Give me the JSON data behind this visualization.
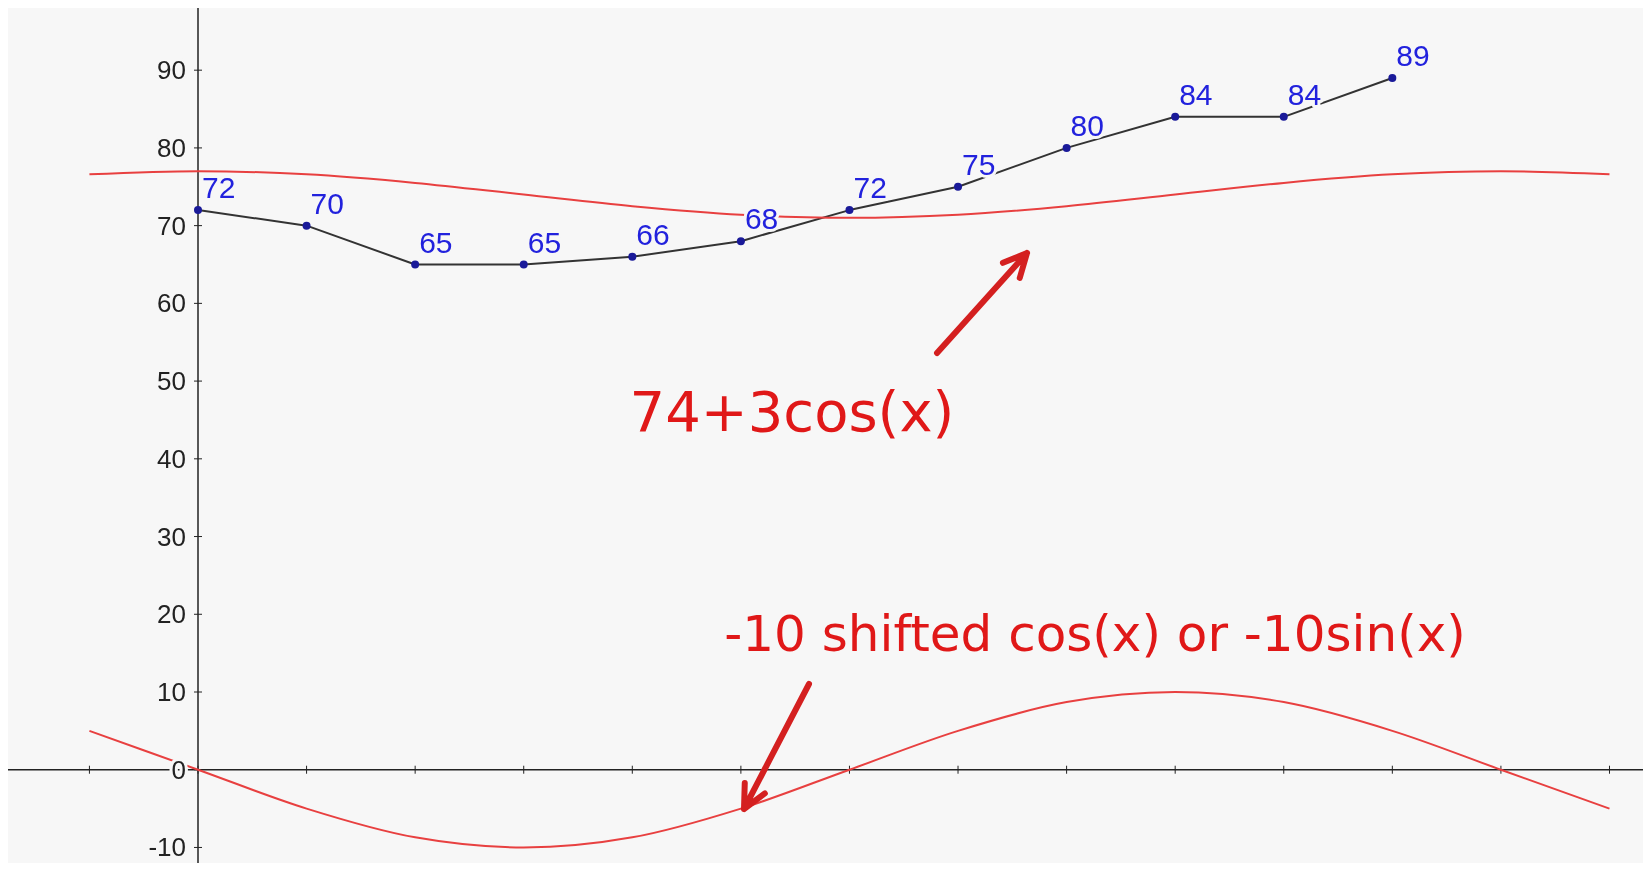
{
  "chart_data": {
    "type": "line",
    "categories": [
      null,
      null,
      null,
      null,
      null,
      null,
      null,
      null,
      null,
      null,
      null,
      null,
      null,
      null,
      null
    ],
    "series": [
      {
        "color": "#333333",
        "marker": "circle",
        "values": [
          null,
          72,
          70,
          65,
          65,
          66,
          68,
          72,
          75,
          80,
          84,
          84,
          89,
          null,
          null
        ],
        "value_labels": [
          null,
          "72",
          "70",
          "65",
          "65",
          "66",
          "68",
          "72",
          "75",
          "80",
          "84",
          "84",
          "89",
          null,
          null
        ]
      },
      {
        "color": "#e84040",
        "marker": "none",
        "values": [
          76.6,
          77,
          76.6,
          75.5,
          74,
          72.5,
          71.4,
          71,
          71.4,
          72.5,
          74,
          75.5,
          76.6,
          77,
          76.6
        ]
      },
      {
        "color": "#e84040",
        "marker": "none",
        "values": [
          5,
          0,
          -5,
          -8.7,
          -10,
          -8.7,
          -5,
          0,
          5,
          8.7,
          10,
          8.7,
          5,
          0,
          -5
        ]
      }
    ],
    "ylim": [
      -12,
      98
    ],
    "yticks": [
      -10,
      0,
      10,
      20,
      30,
      40,
      50,
      60,
      70,
      80,
      90
    ],
    "tick_labels": "y",
    "annotations": [
      "74+3cos(x)",
      "-10 shifted cos(x) or -10sin(x)"
    ]
  }
}
